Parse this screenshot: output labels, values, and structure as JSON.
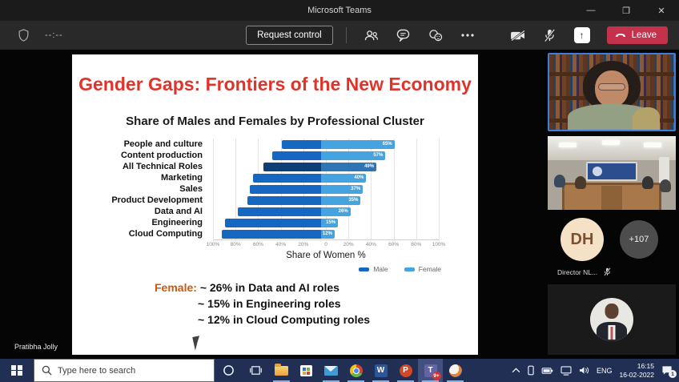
{
  "window": {
    "title": "Microsoft Teams",
    "minimize": "—",
    "maximize": "❐",
    "close": "✕"
  },
  "meeting_toolbar": {
    "timer": "--:--",
    "request_control_label": "Request control",
    "leave_label": "Leave"
  },
  "slide": {
    "title": "Gender Gaps:  Frontiers of the New Economy",
    "subtitle": "Share of Males and Females by Professional Cluster",
    "presenter_name": "Pratibha Jolly",
    "notes": {
      "lead": "Female:",
      "line1": "~  26% in Data and AI roles",
      "line2": "~ 15% in Engineering roles",
      "line3": "~ 12% in Cloud Computing roles"
    }
  },
  "chart_data": {
    "type": "bar",
    "subtype": "diverging-horizontal",
    "title": "Share of Males and Females by Professional Cluster",
    "categories": [
      "People and culture",
      "Content production",
      "All Technical Roles",
      "Marketing",
      "Sales",
      "Product Development",
      "Data and AI",
      "Engineering",
      "Cloud Computing"
    ],
    "series": [
      {
        "name": "Male",
        "values": [
          35,
          43,
          51,
          60,
          63,
          65,
          74,
          85,
          88
        ],
        "color": "#1667c1"
      },
      {
        "name": "Female",
        "values": [
          65,
          57,
          49,
          40,
          37,
          35,
          26,
          15,
          12
        ],
        "color": "#45a3e0"
      }
    ],
    "bar_labels": [
      "65%",
      "57%",
      "49%",
      "40%",
      "37%",
      "35%",
      "26%",
      "15%",
      "12%"
    ],
    "highlight_row": {
      "index": 2,
      "male_color": "#0e3e78",
      "female_color": "#2e75b6"
    },
    "x_ticks": [
      "100%",
      "80%",
      "60%",
      "40%",
      "20%",
      "0",
      "20%",
      "40%",
      "60%",
      "80%",
      "100%"
    ],
    "axis_range": [
      -100,
      100
    ],
    "grid": true,
    "xlabel": "Share of Women %",
    "legend": [
      {
        "label": "Male",
        "color": "#1667c1"
      },
      {
        "label": "Female",
        "color": "#45a3e0"
      }
    ],
    "legend_position": "bottom-right"
  },
  "participants": {
    "avatar_initials": "DH",
    "avatar_label": "Director NL...",
    "overflow_count": "+107"
  },
  "taskbar": {
    "search_placeholder": "Type here to search",
    "language": "ENG",
    "time": "16:15",
    "date": "16-02-2022",
    "teams_badge": "9+",
    "notification_count": "1"
  }
}
